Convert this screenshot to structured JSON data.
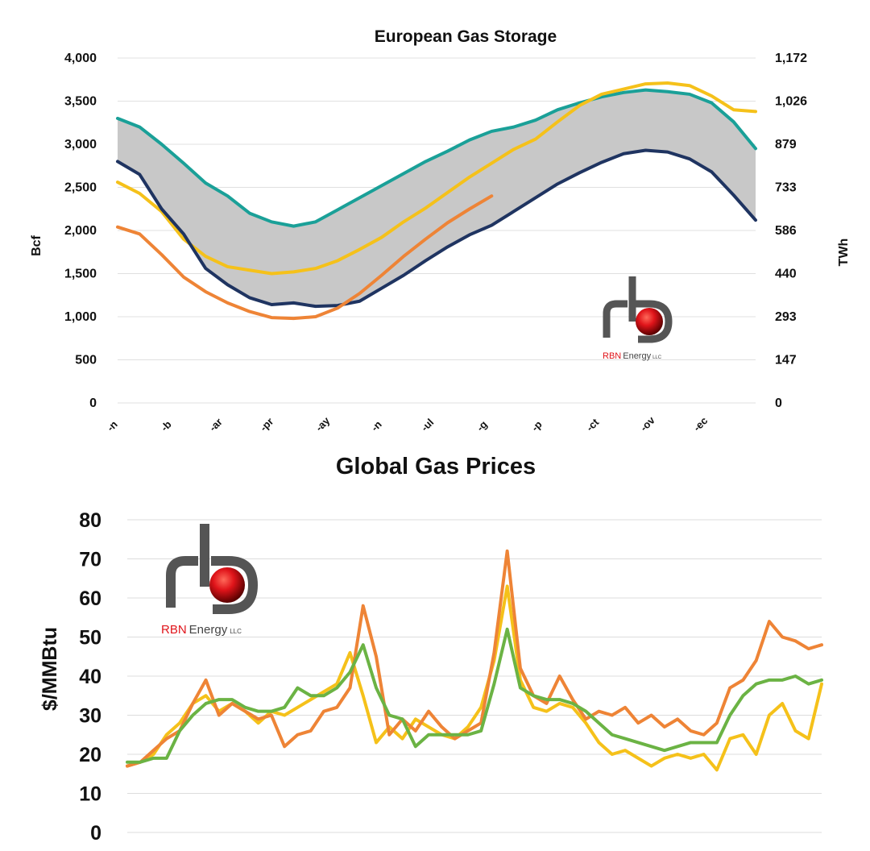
{
  "chart_data": [
    {
      "type": "line",
      "title": "European Gas Storage",
      "ylabel": "Bcf",
      "y2label": "TWh",
      "ylim": [
        0,
        4000
      ],
      "y_ticks": [
        "0",
        "500",
        "1,000",
        "1,500",
        "2,000",
        "2,500",
        "3,000",
        "3,500",
        "4,000"
      ],
      "y2_ticks": [
        "0",
        "147",
        "293",
        "440",
        "586",
        "733",
        "879",
        "1,026",
        "1,172"
      ],
      "x_tick_labels_partially_visible": true,
      "legend": "none",
      "grid": true,
      "band": {
        "fill": "#c8c8c8",
        "between": [
          "Max",
          "Min"
        ]
      },
      "series": [
        {
          "color": "#1aa098",
          "values": [
            3300,
            3200,
            3000,
            2780,
            2550,
            2400,
            2200,
            2100,
            2050,
            2100,
            2240,
            2380,
            2520,
            2660,
            2800,
            2920,
            3050,
            3150,
            3200,
            3280,
            3400,
            3480,
            3550,
            3600,
            3630,
            3610,
            3580,
            3480,
            3260,
            2950
          ]
        },
        {
          "color": "#f5c11a",
          "values": [
            2560,
            2430,
            2220,
            1900,
            1700,
            1580,
            1540,
            1500,
            1520,
            1560,
            1650,
            1780,
            1920,
            2100,
            2260,
            2440,
            2620,
            2780,
            2940,
            3060,
            3260,
            3450,
            3580,
            3640,
            3700,
            3710,
            3680,
            3560,
            3400,
            3380
          ]
        },
        {
          "color": "#1f3461",
          "values": [
            2800,
            2650,
            2250,
            1960,
            1560,
            1370,
            1220,
            1140,
            1160,
            1120,
            1130,
            1180,
            1330,
            1480,
            1650,
            1810,
            1950,
            2060,
            2220,
            2380,
            2540,
            2670,
            2790,
            2890,
            2930,
            2910,
            2830,
            2680,
            2410,
            2120
          ]
        },
        {
          "color": "#ee8436",
          "values": [
            2040,
            1960,
            1720,
            1460,
            1290,
            1160,
            1060,
            990,
            980,
            1000,
            1100,
            1270,
            1480,
            1700,
            1900,
            2090,
            2250,
            2400
          ]
        }
      ]
    },
    {
      "type": "line",
      "title": "Global Gas Prices",
      "ylabel": "$/MMBtu",
      "ylim": [
        0,
        80
      ],
      "y_ticks": [
        "0",
        "10",
        "20",
        "30",
        "40",
        "50",
        "60",
        "70",
        "80"
      ],
      "x_tick_labels_visible": false,
      "legend": "none",
      "grid": true,
      "series": [
        {
          "color": "#f5c11a",
          "values": [
            17,
            18,
            20,
            25,
            28,
            33,
            35,
            31,
            33,
            31,
            28,
            31,
            30,
            32,
            34,
            36,
            38,
            46,
            35,
            23,
            27,
            24,
            29,
            27,
            25,
            24,
            27,
            32,
            44,
            63,
            39,
            32,
            31,
            33,
            32,
            28,
            23,
            20,
            21,
            19,
            17,
            19,
            20,
            19,
            20,
            16,
            24,
            25,
            20,
            30,
            33,
            26,
            24,
            38
          ]
        },
        {
          "color": "#ee8436",
          "values": [
            17,
            18,
            21,
            24,
            26,
            33,
            39,
            30,
            33,
            31,
            29,
            30,
            22,
            25,
            26,
            31,
            32,
            37,
            58,
            45,
            25,
            29,
            26,
            31,
            27,
            24,
            26,
            28,
            46,
            72,
            42,
            35,
            33,
            40,
            34,
            29,
            31,
            30,
            32,
            28,
            30,
            27,
            29,
            26,
            25,
            28,
            37,
            39,
            44,
            54,
            50,
            49,
            47,
            48
          ]
        },
        {
          "color": "#6bb344",
          "values": [
            18,
            18,
            19,
            19,
            26,
            30,
            33,
            34,
            34,
            32,
            31,
            31,
            32,
            37,
            35,
            35,
            37,
            41,
            48,
            37,
            30,
            29,
            22,
            25,
            25,
            25,
            25,
            26,
            38,
            52,
            37,
            35,
            34,
            34,
            33,
            31,
            28,
            25,
            24,
            23,
            22,
            21,
            22,
            23,
            23,
            23,
            30,
            35,
            38,
            39,
            39,
            40,
            38,
            39
          ]
        }
      ]
    }
  ],
  "logos": [
    {
      "brand": "RBN",
      "name": "Energy",
      "suffix": "LLC",
      "icon": "rbn-pipe-logo-icon"
    },
    {
      "brand": "RBN",
      "name": "Energy",
      "suffix": "LLC",
      "icon": "rbn-pipe-logo-icon"
    }
  ]
}
